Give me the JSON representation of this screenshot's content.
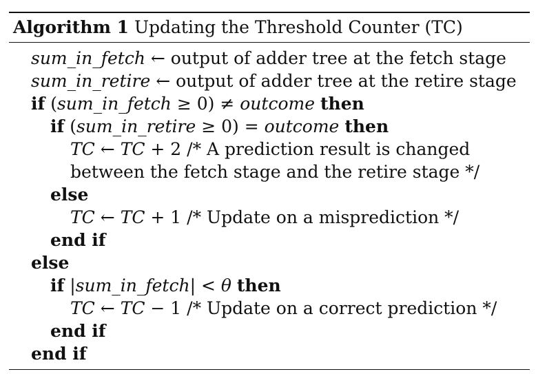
{
  "caption": {
    "label": "Algorithm 1",
    "title": "Updating the Threshold Counter (TC)"
  },
  "lines": [
    {
      "text": "sum_in_fetch ← output of adder tree at the fetch stage"
    },
    {
      "text": "sum_in_retire ← output of adder tree at the retire stage"
    },
    {
      "text": "if (sum_in_fetch ≥ 0) ≠ outcome then"
    },
    {
      "text": "if (sum_in_retire ≥ 0) = outcome then"
    },
    {
      "text": "TC ← TC + 2 /* A prediction result is changed"
    },
    {
      "text": "between the fetch stage and the retire stage */"
    },
    {
      "text": "else"
    },
    {
      "text": "TC ← TC + 1 /* Update on a misprediction */"
    },
    {
      "text": "end if"
    },
    {
      "text": "else"
    },
    {
      "text": "if |sum_in_fetch| < θ then"
    },
    {
      "text": "TC ← TC − 1 /* Update on a correct prediction */"
    },
    {
      "text": "end if"
    },
    {
      "text": "end if"
    }
  ]
}
